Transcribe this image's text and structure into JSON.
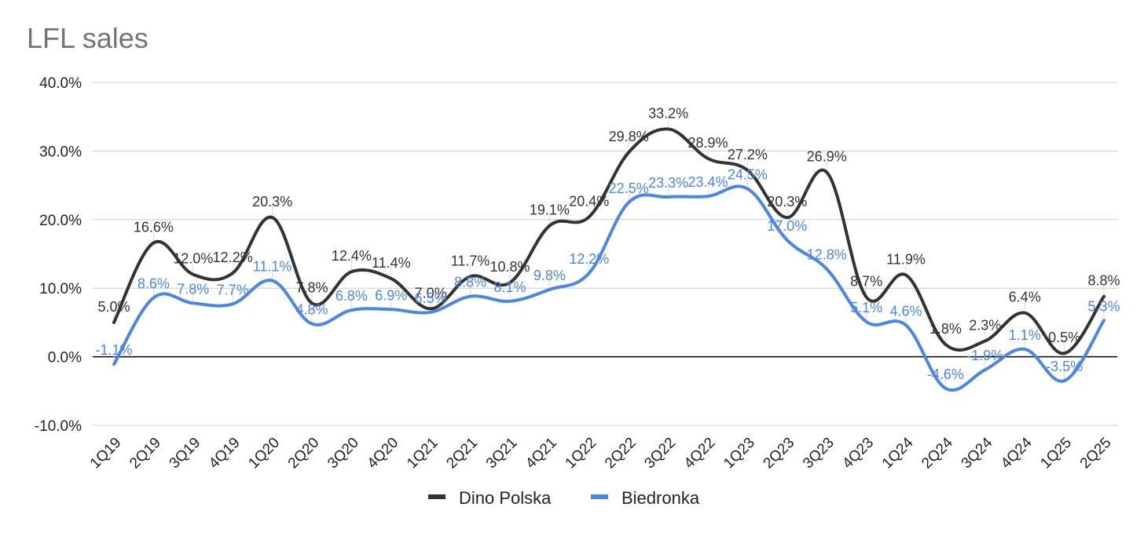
{
  "chart_data": {
    "type": "line",
    "title": "LFL sales",
    "categories": [
      "1Q19",
      "2Q19",
      "3Q19",
      "4Q19",
      "1Q20",
      "2Q20",
      "3Q20",
      "4Q20",
      "1Q21",
      "2Q21",
      "3Q21",
      "4Q21",
      "1Q22",
      "2Q22",
      "3Q22",
      "4Q22",
      "1Q23",
      "2Q23",
      "3Q23",
      "4Q23",
      "1Q24",
      "2Q24",
      "3Q24",
      "4Q24",
      "1Q25",
      "2Q25"
    ],
    "series": [
      {
        "name": "Dino Polska",
        "color": "#333333",
        "values": [
          5.0,
          16.6,
          12.0,
          12.2,
          20.3,
          7.8,
          12.4,
          11.4,
          7.0,
          11.7,
          10.8,
          19.1,
          20.4,
          29.8,
          33.2,
          28.9,
          27.2,
          20.3,
          26.9,
          8.7,
          11.9,
          1.8,
          2.3,
          6.4,
          0.5,
          8.8
        ],
        "labels": [
          "5.0%",
          "16.6%",
          "12.0%",
          "12.2%",
          "20.3%",
          "7.8%",
          "12.4%",
          "11.4%",
          "7.0%",
          "11.7%",
          "10.8%",
          "19.1%",
          "20.4%",
          "29.8%",
          "33.2%",
          "28.9%",
          "27.2%",
          "20.3%",
          "26.9%",
          "8.7%",
          "11.9%",
          "1.8%",
          "2.3%",
          "6.4%",
          "0.5%",
          "8.8%"
        ]
      },
      {
        "name": "Biedronka",
        "color": "#4a86e8",
        "values": [
          -1.1,
          8.6,
          7.8,
          7.7,
          11.1,
          4.8,
          6.8,
          6.9,
          6.5,
          8.8,
          8.1,
          9.8,
          12.2,
          22.5,
          23.3,
          23.4,
          24.5,
          17.0,
          12.8,
          5.1,
          4.6,
          -4.6,
          -1.9,
          1.1,
          -3.5,
          5.3
        ],
        "labels": [
          "-1.1%",
          "8.6%",
          "7.8%",
          "7.7%",
          "11.1%",
          "4.8%",
          "6.8%",
          "6.9%",
          "6.5%",
          "8.8%",
          "8.1%",
          "9.8%",
          "12.2%",
          "22.5%",
          "23.3%",
          "23.4%",
          "24.5%",
          "17.0%",
          "12.8%",
          "5.1%",
          "4.6%",
          "-4.6%",
          "-1.9%",
          "1.1%",
          "-3.5%",
          "5.3%"
        ]
      }
    ],
    "y_ticks": [
      "40.0%",
      "30.0%",
      "20.0%",
      "10.0%",
      "0.0%",
      "-10.0%"
    ],
    "ylim": [
      -10,
      40
    ],
    "xlabel": "",
    "ylabel": "",
    "grid": true,
    "legend": "bottom-center"
  }
}
